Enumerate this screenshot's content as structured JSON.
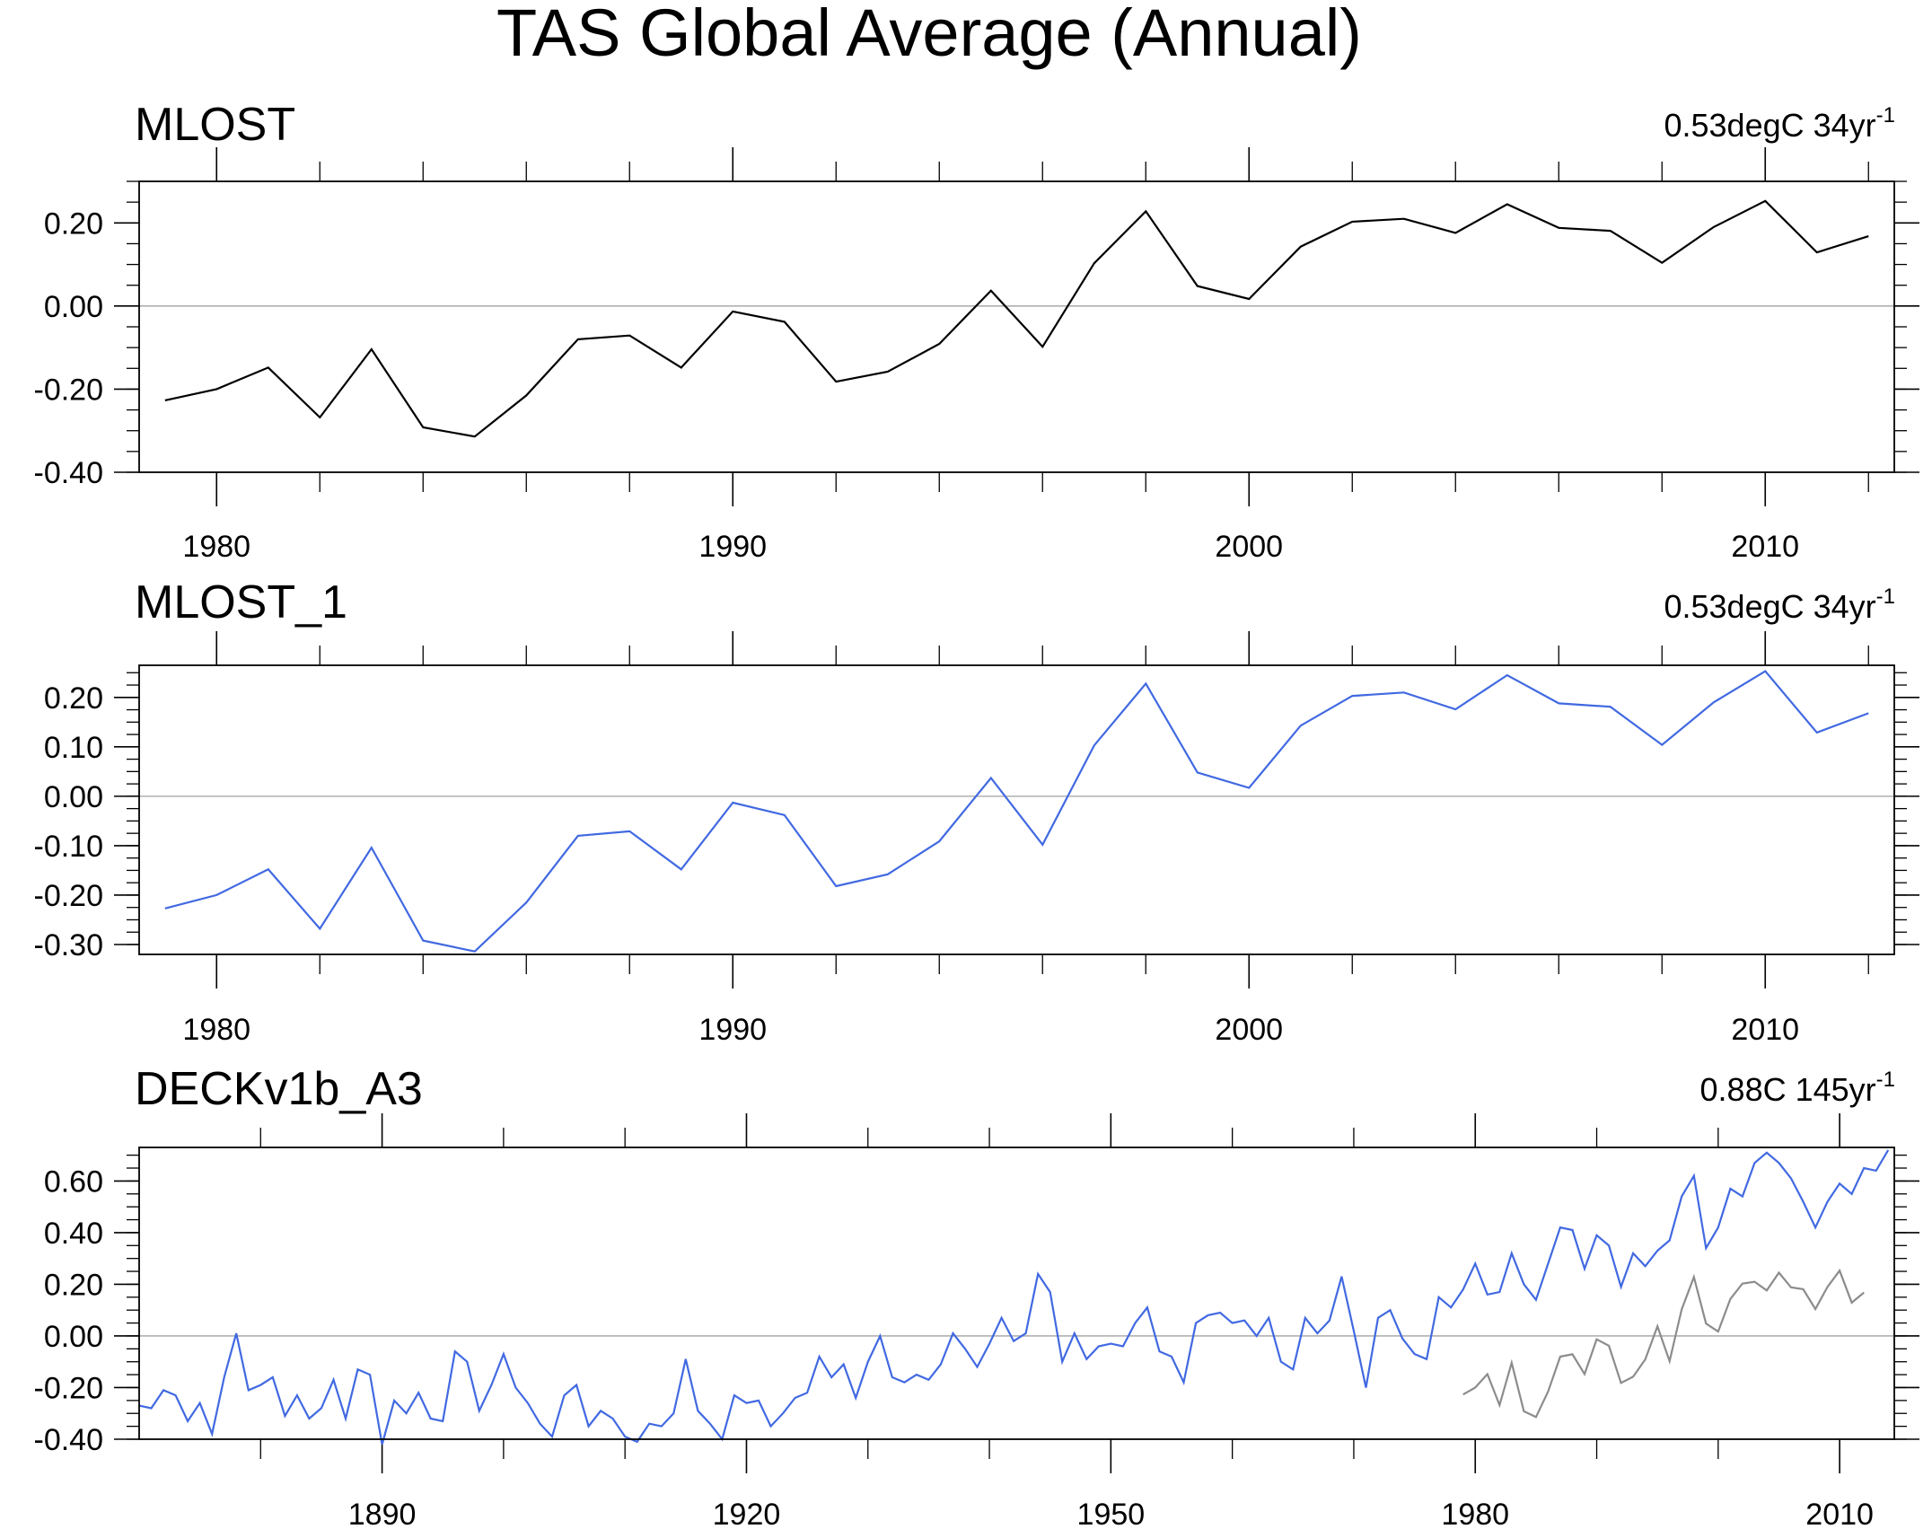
{
  "figure": {
    "title": "TAS Global Average (Annual)"
  },
  "colors": {
    "axis": "#000000",
    "zero_line": "#b0b0b0",
    "obs": "#000000",
    "model": "#4169e1",
    "obs_overlay": "#8c8c8c"
  },
  "chart_data": [
    {
      "type": "line",
      "title": "MLOST",
      "trend_main": "0.53degC 34yr",
      "trend_exp": "-1",
      "xlim": [
        1978.5,
        2012.5
      ],
      "ylim": [
        -0.4,
        0.3
      ],
      "x_major_ticks": [
        1980,
        1990,
        2000,
        2010
      ],
      "x_tick_labels": [
        "1980",
        "1990",
        "2000",
        "2010"
      ],
      "x_minor_ticks": [
        1982,
        1984,
        1986,
        1988,
        1992,
        1994,
        1996,
        1998,
        2002,
        2004,
        2006,
        2008,
        2012
      ],
      "y_ticks": [
        -0.4,
        -0.2,
        0.0,
        0.2
      ],
      "y_tick_labels": [
        "-0.40",
        "-0.20",
        "0.00",
        "0.20"
      ],
      "y_minor_step": 0.05,
      "zero_line": true,
      "series": [
        {
          "name": "MLOST",
          "color": "#000000",
          "x": [
            1979,
            1980,
            1981,
            1982,
            1983,
            1984,
            1985,
            1986,
            1987,
            1988,
            1989,
            1990,
            1991,
            1992,
            1993,
            1994,
            1995,
            1996,
            1997,
            1998,
            1999,
            2000,
            2001,
            2002,
            2003,
            2004,
            2005,
            2006,
            2007,
            2008,
            2009,
            2010,
            2011,
            2012
          ],
          "values": [
            -0.227,
            -0.2,
            -0.148,
            -0.268,
            -0.104,
            -0.292,
            -0.314,
            -0.215,
            -0.08,
            -0.071,
            -0.148,
            -0.013,
            -0.038,
            -0.182,
            -0.158,
            -0.091,
            0.037,
            -0.098,
            0.103,
            0.228,
            0.048,
            0.017,
            0.143,
            0.203,
            0.21,
            0.176,
            0.245,
            0.188,
            0.181,
            0.104,
            0.19,
            0.253,
            0.129,
            0.168
          ]
        }
      ]
    },
    {
      "type": "line",
      "title": "MLOST_1",
      "trend_main": "0.53degC 34yr",
      "trend_exp": "-1",
      "xlim": [
        1978.5,
        2012.5
      ],
      "ylim": [
        -0.32,
        0.265
      ],
      "x_major_ticks": [
        1980,
        1990,
        2000,
        2010
      ],
      "x_tick_labels": [
        "1980",
        "1990",
        "2000",
        "2010"
      ],
      "x_minor_ticks": [
        1982,
        1984,
        1986,
        1988,
        1992,
        1994,
        1996,
        1998,
        2002,
        2004,
        2006,
        2008,
        2012
      ],
      "y_ticks": [
        -0.3,
        -0.2,
        -0.1,
        0.0,
        0.1,
        0.2
      ],
      "y_tick_labels": [
        "-0.30",
        "-0.20",
        "-0.10",
        "0.00",
        "0.10",
        "0.20"
      ],
      "y_minor_step": 0.025,
      "zero_line": true,
      "series": [
        {
          "name": "MLOST_1",
          "color": "#4169e1",
          "x": [
            1979,
            1980,
            1981,
            1982,
            1983,
            1984,
            1985,
            1986,
            1987,
            1988,
            1989,
            1990,
            1991,
            1992,
            1993,
            1994,
            1995,
            1996,
            1997,
            1998,
            1999,
            2000,
            2001,
            2002,
            2003,
            2004,
            2005,
            2006,
            2007,
            2008,
            2009,
            2010,
            2011,
            2012
          ],
          "values": [
            -0.227,
            -0.2,
            -0.148,
            -0.268,
            -0.104,
            -0.292,
            -0.314,
            -0.215,
            -0.08,
            -0.071,
            -0.148,
            -0.013,
            -0.038,
            -0.182,
            -0.158,
            -0.091,
            0.037,
            -0.098,
            0.103,
            0.228,
            0.048,
            0.017,
            0.143,
            0.203,
            0.21,
            0.176,
            0.245,
            0.188,
            0.181,
            0.104,
            0.19,
            0.253,
            0.129,
            0.168
          ]
        }
      ]
    },
    {
      "type": "line",
      "title": "DECKv1b_A3",
      "trend_main": "0.88C 145yr",
      "trend_exp": "-1",
      "xlim": [
        1870,
        2014.5
      ],
      "ylim": [
        -0.4,
        0.73
      ],
      "x_major_ticks": [
        1890,
        1920,
        1950,
        1980,
        2010
      ],
      "x_tick_labels": [
        "1890",
        "1920",
        "1950",
        "1980",
        "2010"
      ],
      "x_minor_ticks": [
        1880,
        1900,
        1910,
        1930,
        1940,
        1960,
        1970,
        1990,
        2000
      ],
      "y_ticks": [
        -0.4,
        -0.2,
        0.0,
        0.2,
        0.4,
        0.6
      ],
      "y_tick_labels": [
        "-0.40",
        "-0.20",
        "0.00",
        "0.20",
        "0.40",
        "0.60"
      ],
      "y_minor_step": 0.05,
      "zero_line": true,
      "series": [
        {
          "name": "DECKv1b_A3",
          "color": "#4169e1",
          "x": [
            1870,
            1871,
            1872,
            1873,
            1874,
            1875,
            1876,
            1877,
            1878,
            1879,
            1880,
            1881,
            1882,
            1883,
            1884,
            1885,
            1886,
            1887,
            1888,
            1889,
            1890,
            1891,
            1892,
            1893,
            1894,
            1895,
            1896,
            1897,
            1898,
            1899,
            1900,
            1901,
            1902,
            1903,
            1904,
            1905,
            1906,
            1907,
            1908,
            1909,
            1910,
            1911,
            1912,
            1913,
            1914,
            1915,
            1916,
            1917,
            1918,
            1919,
            1920,
            1921,
            1922,
            1923,
            1924,
            1925,
            1926,
            1927,
            1928,
            1929,
            1930,
            1931,
            1932,
            1933,
            1934,
            1935,
            1936,
            1937,
            1938,
            1939,
            1940,
            1941,
            1942,
            1943,
            1944,
            1945,
            1946,
            1947,
            1948,
            1949,
            1950,
            1951,
            1952,
            1953,
            1954,
            1955,
            1956,
            1957,
            1958,
            1959,
            1960,
            1961,
            1962,
            1963,
            1964,
            1965,
            1966,
            1967,
            1968,
            1969,
            1970,
            1971,
            1972,
            1973,
            1974,
            1975,
            1976,
            1977,
            1978,
            1979,
            1980,
            1981,
            1982,
            1983,
            1984,
            1985,
            1986,
            1987,
            1988,
            1989,
            1990,
            1991,
            1992,
            1993,
            1994,
            1995,
            1996,
            1997,
            1998,
            1999,
            2000,
            2001,
            2002,
            2003,
            2004,
            2005,
            2006,
            2007,
            2008,
            2009,
            2010,
            2011,
            2012,
            2013,
            2014
          ],
          "values": [
            -0.27,
            -0.28,
            -0.21,
            -0.23,
            -0.33,
            -0.26,
            -0.38,
            -0.16,
            0.01,
            -0.21,
            -0.19,
            -0.16,
            -0.31,
            -0.23,
            -0.32,
            -0.28,
            -0.17,
            -0.32,
            -0.13,
            -0.15,
            -0.42,
            -0.25,
            -0.3,
            -0.22,
            -0.32,
            -0.33,
            -0.06,
            -0.1,
            -0.29,
            -0.19,
            -0.07,
            -0.2,
            -0.26,
            -0.34,
            -0.39,
            -0.23,
            -0.19,
            -0.35,
            -0.29,
            -0.32,
            -0.39,
            -0.41,
            -0.34,
            -0.35,
            -0.3,
            -0.09,
            -0.29,
            -0.34,
            -0.4,
            -0.23,
            -0.26,
            -0.25,
            -0.35,
            -0.3,
            -0.24,
            -0.22,
            -0.08,
            -0.16,
            -0.11,
            -0.24,
            -0.1,
            0.0,
            -0.16,
            -0.18,
            -0.15,
            -0.17,
            -0.11,
            0.01,
            -0.05,
            -0.12,
            -0.03,
            0.07,
            -0.02,
            0.01,
            0.24,
            0.17,
            -0.1,
            0.01,
            -0.09,
            -0.04,
            -0.03,
            -0.04,
            0.05,
            0.11,
            -0.06,
            -0.08,
            -0.18,
            0.05,
            0.08,
            0.09,
            0.05,
            0.06,
            0.0,
            0.07,
            -0.1,
            -0.13,
            0.07,
            0.01,
            0.06,
            0.23,
            0.02,
            -0.2,
            0.07,
            0.1,
            -0.01,
            -0.07,
            -0.09,
            0.15,
            0.11,
            0.18,
            0.28,
            0.16,
            0.17,
            0.32,
            0.2,
            0.14,
            0.28,
            0.42,
            0.41,
            0.26,
            0.39,
            0.35,
            0.19,
            0.32,
            0.27,
            0.33,
            0.37,
            0.54,
            0.62,
            0.34,
            0.42,
            0.57,
            0.54,
            0.67,
            0.71,
            0.67,
            0.61,
            0.52,
            0.42,
            0.52,
            0.59,
            0.55,
            0.65,
            0.64,
            0.72
          ]
        },
        {
          "name": "MLOST",
          "color": "#8c8c8c",
          "x": [
            1979,
            1980,
            1981,
            1982,
            1983,
            1984,
            1985,
            1986,
            1987,
            1988,
            1989,
            1990,
            1991,
            1992,
            1993,
            1994,
            1995,
            1996,
            1997,
            1998,
            1999,
            2000,
            2001,
            2002,
            2003,
            2004,
            2005,
            2006,
            2007,
            2008,
            2009,
            2010,
            2011,
            2012
          ],
          "values": [
            -0.227,
            -0.2,
            -0.148,
            -0.268,
            -0.104,
            -0.292,
            -0.314,
            -0.215,
            -0.08,
            -0.071,
            -0.148,
            -0.013,
            -0.038,
            -0.182,
            -0.158,
            -0.091,
            0.037,
            -0.098,
            0.103,
            0.228,
            0.048,
            0.017,
            0.143,
            0.203,
            0.21,
            0.176,
            0.245,
            0.188,
            0.181,
            0.104,
            0.19,
            0.253,
            0.129,
            0.168
          ]
        }
      ]
    }
  ]
}
